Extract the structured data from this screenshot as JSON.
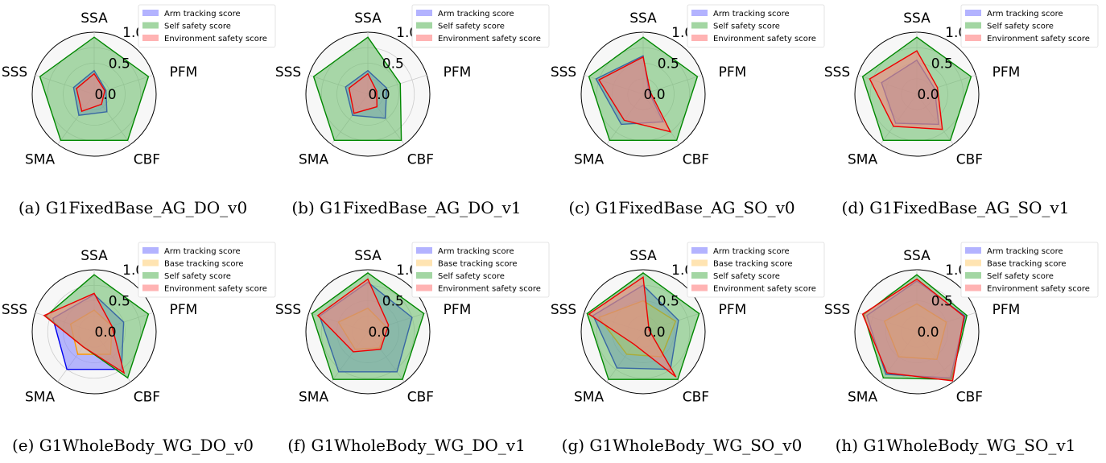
{
  "chart_data": [
    {
      "type": "radar",
      "caption": "(a) G1FixedBase_AG_DO_v0",
      "axes": [
        "SSA",
        "PFM",
        "CBF",
        "SMA",
        "SSS"
      ],
      "rticks": [
        "0.0",
        "0.5",
        "1.0"
      ],
      "rlim": [
        0,
        1
      ],
      "series": [
        {
          "name": "Arm tracking score",
          "values": [
            0.38,
            0.2,
            0.35,
            0.42,
            0.35
          ]
        },
        {
          "name": "Self safety score",
          "values": [
            0.92,
            0.92,
            0.92,
            0.92,
            0.92
          ]
        },
        {
          "name": "Environment safety score",
          "values": [
            0.33,
            0.18,
            0.2,
            0.34,
            0.3
          ]
        }
      ]
    },
    {
      "type": "radar",
      "caption": "(b) G1FixedBase_AG_DO_v1",
      "axes": [
        "SSA",
        "PFM",
        "CBF",
        "SMA",
        "SSS"
      ],
      "rticks": [
        "0.0",
        "0.5",
        "1.0"
      ],
      "rlim": [
        0,
        1
      ],
      "series": [
        {
          "name": "Arm tracking score",
          "values": [
            0.38,
            0.32,
            0.48,
            0.42,
            0.38
          ]
        },
        {
          "name": "Self safety score",
          "values": [
            0.92,
            0.55,
            0.92,
            0.92,
            0.92
          ]
        },
        {
          "name": "Environment safety score",
          "values": [
            0.33,
            0.15,
            0.25,
            0.38,
            0.32
          ]
        }
      ]
    },
    {
      "type": "radar",
      "caption": "(c) G1FixedBase_AG_SO_v0",
      "axes": [
        "SSA",
        "PFM",
        "CBF",
        "SMA",
        "SSS"
      ],
      "rticks": [
        "0.0",
        "0.5",
        "1.0"
      ],
      "rlim": [
        0,
        1
      ],
      "series": [
        {
          "name": "Arm tracking score",
          "values": [
            0.62,
            0.1,
            0.55,
            0.6,
            0.8
          ]
        },
        {
          "name": "Self safety score",
          "values": [
            0.92,
            0.92,
            0.92,
            0.92,
            0.92
          ]
        },
        {
          "name": "Environment safety score",
          "values": [
            0.6,
            0.12,
            0.75,
            0.52,
            0.75
          ]
        }
      ]
    },
    {
      "type": "radar",
      "caption": "(d) G1FixedBase_AG_SO_v1",
      "axes": [
        "SSA",
        "PFM",
        "CBF",
        "SMA",
        "SSS"
      ],
      "rticks": [
        "0.0",
        "0.5",
        "1.0"
      ],
      "rlim": [
        0,
        1
      ],
      "series": [
        {
          "name": "Arm tracking score",
          "values": [
            0.55,
            0.3,
            0.6,
            0.58,
            0.6
          ]
        },
        {
          "name": "Self safety score",
          "values": [
            0.92,
            0.92,
            0.92,
            0.92,
            0.92
          ]
        },
        {
          "name": "Environment safety score",
          "values": [
            0.7,
            0.35,
            0.7,
            0.64,
            0.8
          ]
        }
      ]
    },
    {
      "type": "radar",
      "caption": "(e) G1WholeBody_WG_DO_v0",
      "axes": [
        "SSA",
        "PFM",
        "CBF",
        "SMA",
        "SSS"
      ],
      "rticks": [
        "0.0",
        "0.5",
        "1.0"
      ],
      "rlim": [
        0,
        1
      ],
      "series": [
        {
          "name": "Arm tracking score",
          "values": [
            0.6,
            0.5,
            0.75,
            0.75,
            0.7
          ]
        },
        {
          "name": "Base tracking score",
          "values": [
            0.35,
            0.3,
            0.45,
            0.45,
            0.4
          ]
        },
        {
          "name": "Self safety score",
          "values": [
            0.92,
            0.92,
            0.92,
            0.3,
            0.82
          ]
        },
        {
          "name": "Environment safety score",
          "values": [
            0.62,
            0.3,
            0.82,
            0.3,
            0.85
          ]
        }
      ]
    },
    {
      "type": "radar",
      "caption": "(f) G1WholeBody_WG_DO_v1",
      "axes": [
        "SSA",
        "PFM",
        "CBF",
        "SMA",
        "SSS"
      ],
      "rticks": [
        "0.0",
        "0.5",
        "1.0"
      ],
      "rlim": [
        0,
        1
      ],
      "series": [
        {
          "name": "Arm tracking score",
          "values": [
            0.8,
            0.75,
            0.8,
            0.8,
            0.82
          ]
        },
        {
          "name": "Base tracking score",
          "values": [
            0.38,
            0.3,
            0.32,
            0.35,
            0.5
          ]
        },
        {
          "name": "Self safety score",
          "values": [
            0.95,
            0.95,
            0.95,
            0.95,
            0.95
          ]
        },
        {
          "name": "Environment safety score",
          "values": [
            0.85,
            0.35,
            0.35,
            0.4,
            0.85
          ]
        }
      ]
    },
    {
      "type": "radar",
      "caption": "(g) G1WholeBody_WG_SO_v0",
      "axes": [
        "SSA",
        "PFM",
        "CBF",
        "SMA",
        "SSS"
      ],
      "rticks": [
        "0.0",
        "0.5",
        "1.0"
      ],
      "rlim": [
        0,
        1
      ],
      "series": [
        {
          "name": "Arm tracking score",
          "values": [
            0.75,
            0.6,
            0.75,
            0.72,
            0.85
          ]
        },
        {
          "name": "Base tracking score",
          "values": [
            0.5,
            0.55,
            0.5,
            0.45,
            0.75
          ]
        },
        {
          "name": "Self safety score",
          "values": [
            0.95,
            0.95,
            0.95,
            0.95,
            0.95
          ]
        },
        {
          "name": "Environment safety score",
          "values": [
            0.88,
            0.1,
            0.9,
            0.25,
            0.92
          ]
        }
      ]
    },
    {
      "type": "radar",
      "caption": "(h) G1WholeBody_WG_SO_v1",
      "axes": [
        "SSA",
        "PFM",
        "CBF",
        "SMA",
        "SSS"
      ],
      "rticks": [
        "0.0",
        "0.5",
        "1.0"
      ],
      "rlim": [
        0,
        1
      ],
      "series": [
        {
          "name": "Arm tracking score",
          "values": [
            0.82,
            0.82,
            0.92,
            0.85,
            0.85
          ]
        },
        {
          "name": "Base tracking score",
          "values": [
            0.45,
            0.5,
            0.55,
            0.5,
            0.55
          ]
        },
        {
          "name": "Self safety score",
          "values": [
            0.92,
            0.85,
            0.95,
            0.92,
            0.9
          ]
        },
        {
          "name": "Environment safety score",
          "values": [
            0.85,
            0.8,
            0.98,
            0.82,
            0.92
          ]
        }
      ]
    }
  ],
  "series_colors": {
    "Arm tracking score": "#0000ee",
    "Base tracking score": "#ff9900",
    "Self safety score": "#008800",
    "Environment safety score": "#ee0000"
  },
  "series_fills": {
    "Arm tracking score": "#8080ff",
    "Base tracking score": "#ffd27f",
    "Self safety score": "#66bb66",
    "Environment safety score": "#ff8080"
  }
}
